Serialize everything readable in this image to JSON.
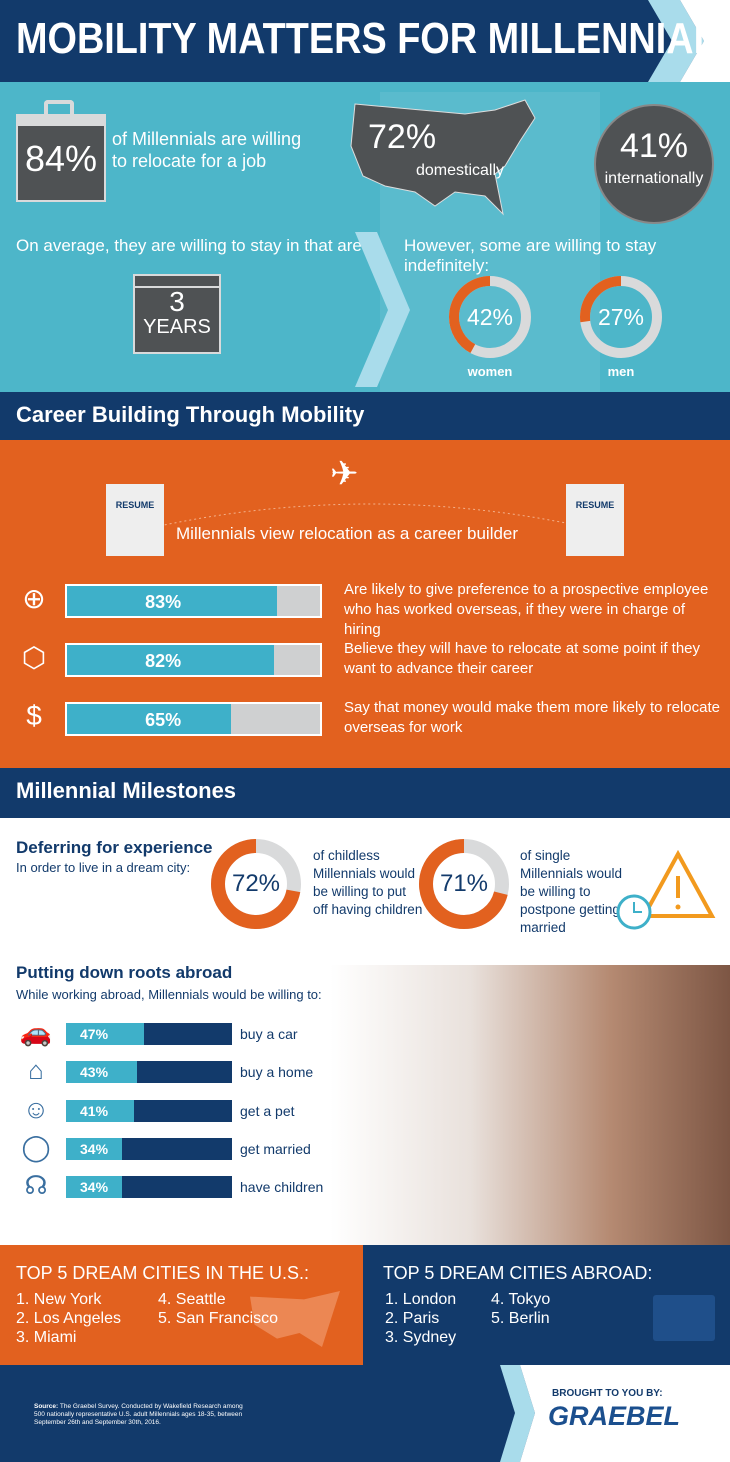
{
  "title": "MOBILITY MATTERS FOR MILLENNIALS",
  "intro": {
    "stat": "84%",
    "text": "of Millennials are willing to relocate for a job",
    "domestic": {
      "value": "72%",
      "label": "domestically"
    },
    "international": {
      "value": "41%",
      "label": "internationally"
    },
    "stay_label": "On average, they are willing to stay in that area:",
    "years_num": "3",
    "years_label": "YEARS",
    "indef_label": "However, some are willing to stay indefinitely:",
    "women": {
      "value": "42%",
      "label": "women",
      "pct": 42
    },
    "men": {
      "value": "27%",
      "label": "men",
      "pct": 27
    }
  },
  "career": {
    "heading": "Career Building Through Mobility",
    "resume": "RESUME",
    "tagline": "Millennials view relocation as a career builder",
    "items": [
      {
        "value": "83%",
        "pct": 83,
        "text": "Are likely to give preference to a prospective employee who has worked overseas, if they were in charge of hiring",
        "icon": "passport-icon"
      },
      {
        "value": "82%",
        "pct": 82,
        "text": "Believe they will have to relocate at some point if they want to advance their career",
        "icon": "box-icon"
      },
      {
        "value": "65%",
        "pct": 65,
        "text": "Say that money would make them more likely to relocate overseas for work",
        "icon": "dollar-icon"
      }
    ]
  },
  "milestones": {
    "heading": "Millennial Milestones",
    "defer_title": "Deferring for experience",
    "defer_sub": "In order to live in a dream city:",
    "children": {
      "value": "72%",
      "pct": 72,
      "text": "of childless Millennials would be willing to put off having children"
    },
    "married": {
      "value": "71%",
      "pct": 71,
      "text": "of single Millennials would be willing to postpone getting married"
    },
    "roots_title": "Putting down roots abroad",
    "roots_sub": "While working abroad, Millennials would be willing to:",
    "roots": [
      {
        "value": "47%",
        "pct": 47,
        "label": "buy a car"
      },
      {
        "value": "43%",
        "pct": 43,
        "label": "buy a home"
      },
      {
        "value": "41%",
        "pct": 41,
        "label": "get a pet"
      },
      {
        "value": "34%",
        "pct": 34,
        "label": "get married"
      },
      {
        "value": "34%",
        "pct": 34,
        "label": "have children"
      }
    ]
  },
  "cities": {
    "us_title": "TOP 5 DREAM CITIES IN THE U.S.:",
    "us": [
      "1. New York",
      "2. Los Angeles",
      "3. Miami",
      "4. Seattle",
      "5. San Francisco"
    ],
    "abroad_title": "TOP 5 DREAM CITIES ABROAD:",
    "abroad": [
      "1. London",
      "2. Paris",
      "3. Sydney",
      "4. Tokyo",
      "5. Berlin"
    ]
  },
  "footer": {
    "source_label": "Source:",
    "source": "The Graebel Survey. Conducted by Wakefield Research among 500 nationally representative U.S. adult Millennials ages 18-35, between September 26th and September 30th, 2016.",
    "brought": "BROUGHT TO YOU BY:",
    "brand": "GRAEBEL"
  },
  "colors": {
    "navy": "#123a6b",
    "teal": "#4db6c9",
    "orange": "#e2611f"
  }
}
